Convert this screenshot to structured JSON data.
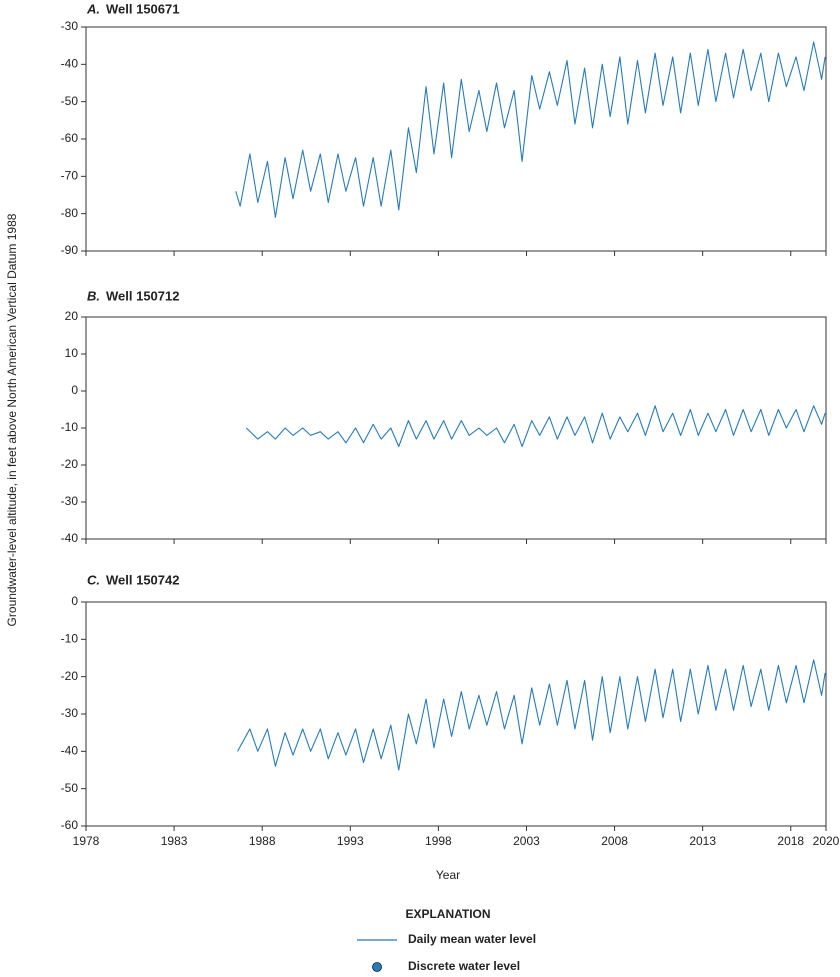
{
  "figure": {
    "ylabel": "Groundwater-level altitude, in feet above North American Vertical Datum 1988",
    "xlabel": "Year",
    "legend": {
      "title": "EXPLANATION",
      "entries": [
        {
          "name": "Daily mean water level",
          "marker": "line",
          "color": "#2a7ab9"
        },
        {
          "name": "Discrete water level",
          "marker": "circle",
          "color": "#2a7ab9"
        }
      ]
    }
  },
  "chart_data": [
    {
      "type": "line",
      "panel_label": "A.",
      "title": "Well 150671",
      "xlim": [
        1978,
        2020
      ],
      "xticks": [
        1978,
        1983,
        1988,
        1993,
        1998,
        2003,
        2008,
        2013,
        2018,
        2020
      ],
      "show_xtick_labels": false,
      "ylim": [
        -90,
        -30
      ],
      "yticks": [
        -90,
        -80,
        -70,
        -60,
        -50,
        -40,
        -30
      ],
      "series": [
        {
          "color": "#2a7ab9",
          "x": [
            1986.5,
            1986.75,
            1987.3,
            1987.75,
            1988.3,
            1988.75,
            1989.3,
            1989.75,
            1990.3,
            1990.75,
            1991.3,
            1991.75,
            1992.3,
            1992.75,
            1993.3,
            1993.75,
            1994.3,
            1994.75,
            1995.3,
            1995.75,
            1996.3,
            1996.75,
            1997.3,
            1997.75,
            1998.3,
            1998.75,
            1999.3,
            1999.75,
            2000.3,
            2000.75,
            2001.3,
            2001.75,
            2002.3,
            2002.75,
            2003.3,
            2003.75,
            2004.3,
            2004.75,
            2005.3,
            2005.75,
            2006.3,
            2006.75,
            2007.3,
            2007.75,
            2008.3,
            2008.75,
            2009.3,
            2009.75,
            2010.3,
            2010.75,
            2011.3,
            2011.75,
            2012.3,
            2012.75,
            2013.3,
            2013.75,
            2014.3,
            2014.75,
            2015.3,
            2015.75,
            2016.3,
            2016.75,
            2017.3,
            2017.75,
            2018.3,
            2018.75,
            2019.3,
            2019.75,
            2019.95
          ],
          "values": [
            -74,
            -78,
            -64,
            -77,
            -66,
            -81,
            -65,
            -76,
            -63,
            -74,
            -64,
            -77,
            -64,
            -74,
            -65,
            -78,
            -65,
            -78,
            -63,
            -79,
            -57,
            -69,
            -46,
            -64,
            -45,
            -65,
            -44,
            -58,
            -47,
            -58,
            -45,
            -57,
            -47,
            -66,
            -43,
            -52,
            -42,
            -51,
            -39,
            -56,
            -41,
            -57,
            -40,
            -54,
            -38,
            -56,
            -39,
            -53,
            -37,
            -51,
            -38,
            -53,
            -37,
            -51,
            -36,
            -50,
            -37,
            -49,
            -36,
            -47,
            -37,
            -50,
            -37,
            -46,
            -38,
            -47,
            -34,
            -44,
            -38
          ]
        }
      ]
    },
    {
      "type": "line",
      "panel_label": "B.",
      "title": "Well 150712",
      "xlim": [
        1978,
        2020
      ],
      "xticks": [
        1978,
        1983,
        1988,
        1993,
        1998,
        2003,
        2008,
        2013,
        2018,
        2020
      ],
      "show_xtick_labels": false,
      "ylim": [
        -40,
        20
      ],
      "yticks": [
        -40,
        -30,
        -20,
        -10,
        0,
        10,
        20
      ],
      "series": [
        {
          "color": "#2a7ab9",
          "x": [
            1987.1,
            1987.75,
            1988.3,
            1988.75,
            1989.3,
            1989.75,
            1990.3,
            1990.75,
            1991.3,
            1991.75,
            1992.3,
            1992.75,
            1993.3,
            1993.75,
            1994.3,
            1994.75,
            1995.3,
            1995.75,
            1996.3,
            1996.75,
            1997.3,
            1997.75,
            1998.3,
            1998.75,
            1999.3,
            1999.75,
            2000.3,
            2000.75,
            2001.3,
            2001.75,
            2002.3,
            2002.75,
            2003.3,
            2003.75,
            2004.3,
            2004.75,
            2005.3,
            2005.75,
            2006.3,
            2006.75,
            2007.3,
            2007.75,
            2008.3,
            2008.75,
            2009.3,
            2009.75,
            2010.3,
            2010.75,
            2011.3,
            2011.75,
            2012.3,
            2012.75,
            2013.3,
            2013.75,
            2014.3,
            2014.75,
            2015.3,
            2015.75,
            2016.3,
            2016.75,
            2017.3,
            2017.75,
            2018.3,
            2018.75,
            2019.3,
            2019.75,
            2019.95
          ],
          "values": [
            -10,
            -13,
            -11,
            -13,
            -10,
            -12,
            -10,
            -12,
            -11,
            -13,
            -11,
            -14,
            -10,
            -14,
            -9,
            -13,
            -10,
            -15,
            -8,
            -13,
            -8,
            -13,
            -8,
            -13,
            -8,
            -12,
            -10,
            -12,
            -10,
            -14,
            -9,
            -15,
            -8,
            -12,
            -7,
            -13,
            -7,
            -12,
            -7,
            -14,
            -6,
            -13,
            -7,
            -11,
            -6,
            -12,
            -4,
            -11,
            -6,
            -12,
            -5,
            -12,
            -6,
            -11,
            -5,
            -12,
            -5,
            -11,
            -5,
            -12,
            -5,
            -10,
            -5,
            -11,
            -4,
            -9,
            -6
          ]
        }
      ]
    },
    {
      "type": "line",
      "panel_label": "C.",
      "title": "Well 150742",
      "xlim": [
        1978,
        2020
      ],
      "xticks": [
        1978,
        1983,
        1988,
        1993,
        1998,
        2003,
        2008,
        2013,
        2018,
        2020
      ],
      "show_xtick_labels": true,
      "ylim": [
        -60,
        0
      ],
      "yticks": [
        -60,
        -50,
        -40,
        -30,
        -20,
        -10,
        0
      ],
      "series": [
        {
          "color": "#2a7ab9",
          "x": [
            1986.6,
            1987.3,
            1987.75,
            1988.3,
            1988.75,
            1989.3,
            1989.75,
            1990.3,
            1990.75,
            1991.3,
            1991.75,
            1992.3,
            1992.75,
            1993.3,
            1993.75,
            1994.3,
            1994.75,
            1995.3,
            1995.75,
            1996.3,
            1996.75,
            1997.3,
            1997.75,
            1998.3,
            1998.75,
            1999.3,
            1999.75,
            2000.3,
            2000.75,
            2001.3,
            2001.75,
            2002.3,
            2002.75,
            2003.3,
            2003.75,
            2004.3,
            2004.75,
            2005.3,
            2005.75,
            2006.3,
            2006.75,
            2007.3,
            2007.75,
            2008.3,
            2008.75,
            2009.3,
            2009.75,
            2010.3,
            2010.75,
            2011.3,
            2011.75,
            2012.3,
            2012.75,
            2013.3,
            2013.75,
            2014.3,
            2014.75,
            2015.3,
            2015.75,
            2016.3,
            2016.75,
            2017.3,
            2017.75,
            2018.3,
            2018.75,
            2019.3,
            2019.75,
            2019.95
          ],
          "values": [
            -40,
            -34,
            -40,
            -34,
            -44,
            -35,
            -41,
            -34,
            -40,
            -34,
            -42,
            -35,
            -41,
            -34,
            -43,
            -34,
            -42,
            -33,
            -45,
            -30,
            -38,
            -26,
            -39,
            -26,
            -36,
            -24,
            -34,
            -25,
            -33,
            -24,
            -34,
            -25,
            -38,
            -23,
            -33,
            -22,
            -33,
            -21,
            -34,
            -21,
            -37,
            -20,
            -35,
            -20,
            -34,
            -20,
            -32,
            -18,
            -31,
            -18,
            -32,
            -18,
            -30,
            -17,
            -29,
            -18,
            -29,
            -17,
            -28,
            -18,
            -29,
            -17,
            -27,
            -17,
            -27,
            -15.5,
            -25,
            -19
          ]
        }
      ]
    }
  ]
}
